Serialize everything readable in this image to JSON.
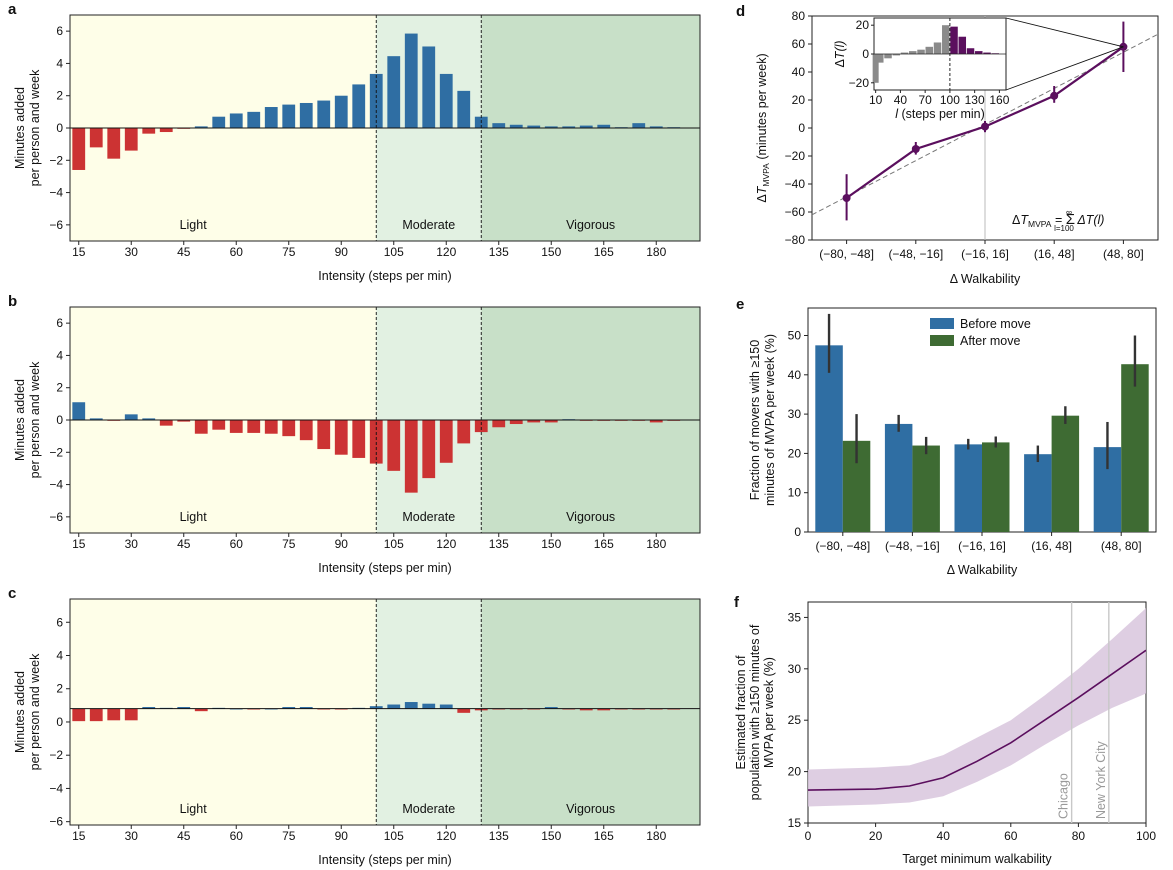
{
  "colors": {
    "blue": "#2f6ea3",
    "red": "#cc3333",
    "green": "#3e6b33",
    "purple": "#5b0f5e",
    "band": "#d8c6dd",
    "light_zone": "#fefee8",
    "moderate_zone": "#e2f1e2",
    "vigorous_zone": "#c8e0c8"
  },
  "panels": {
    "a": "a",
    "b": "b",
    "c": "c",
    "d": "d",
    "e": "e",
    "f": "f"
  },
  "zones": {
    "light": "Light",
    "moderate": "Moderate",
    "vigorous": "Vigorous"
  },
  "chart_data": [
    {
      "id": "a",
      "type": "bar",
      "xlabel": "Intensity (steps per min)",
      "ylabel_lines": [
        "Minutes added",
        "per person and week"
      ],
      "ylim": [
        -7,
        7
      ],
      "yticks": [
        -6,
        -4,
        -2,
        0,
        2,
        4,
        6
      ],
      "xticks": [
        15,
        30,
        45,
        60,
        75,
        90,
        105,
        120,
        135,
        150,
        165,
        180
      ],
      "x": [
        15,
        20,
        25,
        30,
        35,
        40,
        45,
        50,
        55,
        60,
        65,
        70,
        75,
        80,
        85,
        90,
        95,
        100,
        105,
        110,
        115,
        120,
        125,
        130,
        135,
        140,
        145,
        150,
        155,
        160,
        165,
        170,
        175,
        180,
        185
      ],
      "values": [
        -2.6,
        -1.2,
        -1.9,
        -1.4,
        -0.35,
        -0.25,
        -0.05,
        0.1,
        0.7,
        0.9,
        1.0,
        1.3,
        1.45,
        1.55,
        1.7,
        2.0,
        2.7,
        3.35,
        4.45,
        5.85,
        5.05,
        3.35,
        2.3,
        0.7,
        0.3,
        0.2,
        0.15,
        0.1,
        0.1,
        0.15,
        0.2,
        0.05,
        0.3,
        0.1,
        0.05
      ]
    },
    {
      "id": "b",
      "type": "bar",
      "xlabel": "Intensity (steps per min)",
      "ylabel_lines": [
        "Minutes added",
        "per person and week"
      ],
      "ylim": [
        -7,
        7
      ],
      "yticks": [
        -6,
        -4,
        -2,
        0,
        2,
        4,
        6
      ],
      "xticks": [
        15,
        30,
        45,
        60,
        75,
        90,
        105,
        120,
        135,
        150,
        165,
        180
      ],
      "x": [
        15,
        20,
        25,
        30,
        35,
        40,
        45,
        50,
        55,
        60,
        65,
        70,
        75,
        80,
        85,
        90,
        95,
        100,
        105,
        110,
        115,
        120,
        125,
        130,
        135,
        140,
        145,
        150,
        155,
        160,
        165,
        170,
        175,
        180,
        185
      ],
      "values": [
        1.1,
        0.1,
        -0.05,
        0.35,
        0.1,
        -0.35,
        -0.1,
        -0.85,
        -0.6,
        -0.8,
        -0.8,
        -0.85,
        -1.0,
        -1.25,
        -1.8,
        -2.15,
        -2.35,
        -2.7,
        -3.15,
        -4.5,
        -3.6,
        -2.65,
        -1.45,
        -0.75,
        -0.45,
        -0.25,
        -0.15,
        -0.15,
        0.05,
        -0.05,
        -0.05,
        -0.05,
        -0.05,
        -0.15,
        -0.05
      ]
    },
    {
      "id": "c",
      "type": "bar",
      "xlabel": "Intensity (steps per min)",
      "ylabel_lines": [
        "Minutes added",
        "per person and week"
      ],
      "ylim": [
        -6.2,
        7.4
      ],
      "baseline": 0.8,
      "yticks": [
        -6,
        -4,
        -2,
        0,
        2,
        4,
        6
      ],
      "xticks": [
        15,
        30,
        45,
        60,
        75,
        90,
        105,
        120,
        135,
        150,
        165,
        180
      ],
      "x": [
        15,
        20,
        25,
        30,
        35,
        40,
        45,
        50,
        55,
        60,
        65,
        70,
        75,
        80,
        85,
        90,
        95,
        100,
        105,
        110,
        115,
        120,
        125,
        130,
        135,
        140,
        145,
        150,
        155,
        160,
        165,
        170,
        175,
        180,
        185
      ],
      "values": [
        0.05,
        0.05,
        0.1,
        0.1,
        0.9,
        0.85,
        0.9,
        0.65,
        0.85,
        0.8,
        0.75,
        0.8,
        0.9,
        0.9,
        0.75,
        0.75,
        0.85,
        0.95,
        1.05,
        1.2,
        1.1,
        1.05,
        0.55,
        0.7,
        0.75,
        0.75,
        0.75,
        0.9,
        0.75,
        0.7,
        0.7,
        0.75,
        0.75,
        0.75,
        0.75
      ]
    },
    {
      "id": "d",
      "type": "line",
      "xlabel": "Δ Walkability",
      "ylabel": "ΔT_MVPA (minutes per week)",
      "categories": [
        "(−80, −48]",
        "(−48, −16]",
        "(−16, 16]",
        "(16, 48]",
        "(48, 80]"
      ],
      "values": [
        -50,
        -15,
        1,
        23,
        58
      ],
      "err_low": [
        -66,
        -10,
        -3,
        18,
        40
      ],
      "err_high": [
        -33,
        -19,
        5,
        30,
        76
      ],
      "ylim": [
        -80,
        80
      ],
      "yticks": [
        -80,
        -60,
        -40,
        -20,
        0,
        20,
        40,
        60,
        80
      ],
      "annotation": "ΔT_MVPA = Σ_{l=100}^{∞} ΔT(l)",
      "inset": {
        "type": "bar",
        "xlabel": "l (steps per min)",
        "ylabel": "ΔT(l)",
        "xticks": [
          10,
          40,
          70,
          100,
          130,
          160
        ],
        "yticks": [
          -20,
          0,
          20
        ],
        "ylim": [
          -25,
          25
        ],
        "x": [
          10,
          15,
          25,
          35,
          45,
          55,
          65,
          75,
          85,
          95,
          105,
          115,
          125,
          135,
          145,
          155
        ],
        "values": [
          -20,
          -6,
          -3,
          -1,
          1,
          2,
          3,
          5,
          8,
          20,
          19,
          12,
          4,
          2,
          1,
          0.5
        ]
      }
    },
    {
      "id": "e",
      "type": "bar",
      "xlabel": "Δ Walkability",
      "ylabel_lines": [
        "Fraction of movers with ≥150",
        "minutes of MVPA per week (%)"
      ],
      "categories": [
        "(−80, −48]",
        "(−48, −16]",
        "(−16, 16]",
        "(16, 48]",
        "(48, 80]"
      ],
      "ylim": [
        0,
        57
      ],
      "yticks": [
        0,
        10,
        20,
        30,
        40,
        50
      ],
      "legend": "top-center",
      "series": [
        {
          "name": "Before move",
          "values": [
            47.5,
            27.5,
            22.3,
            19.8,
            21.6
          ],
          "err_low": [
            40.5,
            25.5,
            21.0,
            17.8,
            16.0
          ],
          "err_high": [
            55.5,
            29.8,
            23.7,
            22.0,
            28.0
          ]
        },
        {
          "name": "After move",
          "values": [
            23.2,
            22.0,
            22.8,
            29.6,
            42.7
          ],
          "err_low": [
            17.5,
            19.8,
            21.5,
            27.5,
            37.0
          ],
          "err_high": [
            30.0,
            24.2,
            24.3,
            32.0,
            50.0
          ]
        }
      ]
    },
    {
      "id": "f",
      "type": "line",
      "xlabel": "Target minimum walkability",
      "ylabel_lines": [
        "Estimated fraction of",
        "population with ≥150 minutes of",
        "MVPA per week (%)"
      ],
      "xlim": [
        0,
        100
      ],
      "ylim": [
        15,
        36.5
      ],
      "xticks": [
        0,
        20,
        40,
        60,
        80,
        100
      ],
      "yticks": [
        15,
        20,
        25,
        30,
        35
      ],
      "x": [
        0,
        10,
        20,
        30,
        40,
        50,
        60,
        70,
        80,
        90,
        100
      ],
      "values": [
        18.2,
        18.25,
        18.3,
        18.6,
        19.4,
        21.0,
        22.8,
        25.0,
        27.2,
        29.5,
        31.8
      ],
      "band_low": [
        16.6,
        16.7,
        16.8,
        17.0,
        17.6,
        19.0,
        20.6,
        22.6,
        24.5,
        26.2,
        27.6
      ],
      "band_high": [
        20.2,
        20.3,
        20.4,
        20.6,
        21.6,
        23.3,
        25.0,
        27.4,
        30.0,
        32.9,
        35.9
      ],
      "reference_lines": [
        {
          "label": "Chicago",
          "x": 78
        },
        {
          "label": "New York City",
          "x": 89
        }
      ]
    }
  ]
}
